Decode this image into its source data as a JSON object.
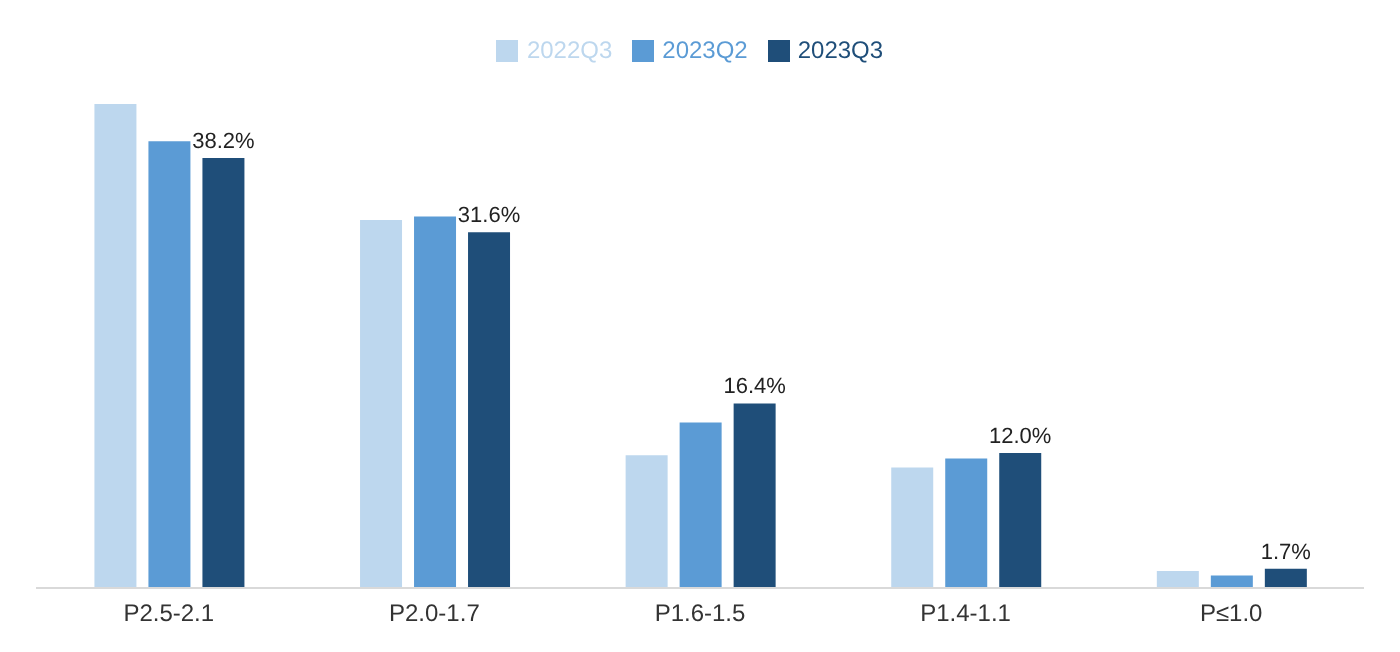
{
  "chart_data": {
    "type": "bar",
    "categories": [
      "P2.5-2.1",
      "P2.0-1.7",
      "P1.6-1.5",
      "P1.4-1.1",
      "P≤1.0"
    ],
    "series": [
      {
        "name": "2022Q3",
        "color": "#bdd7ee",
        "values": [
          43.0,
          32.7,
          11.8,
          10.7,
          1.5
        ]
      },
      {
        "name": "2023Q2",
        "color": "#5b9bd5",
        "values": [
          39.7,
          33.0,
          14.7,
          11.5,
          1.1
        ]
      },
      {
        "name": "2023Q3",
        "color": "#1f4e79",
        "values": [
          38.2,
          31.6,
          16.4,
          12.0,
          1.7
        ],
        "value_labels": [
          "38.2%",
          "31.6%",
          "16.4%",
          "12.0%",
          "1.7%"
        ]
      }
    ],
    "legend": "top",
    "grid": false
  }
}
